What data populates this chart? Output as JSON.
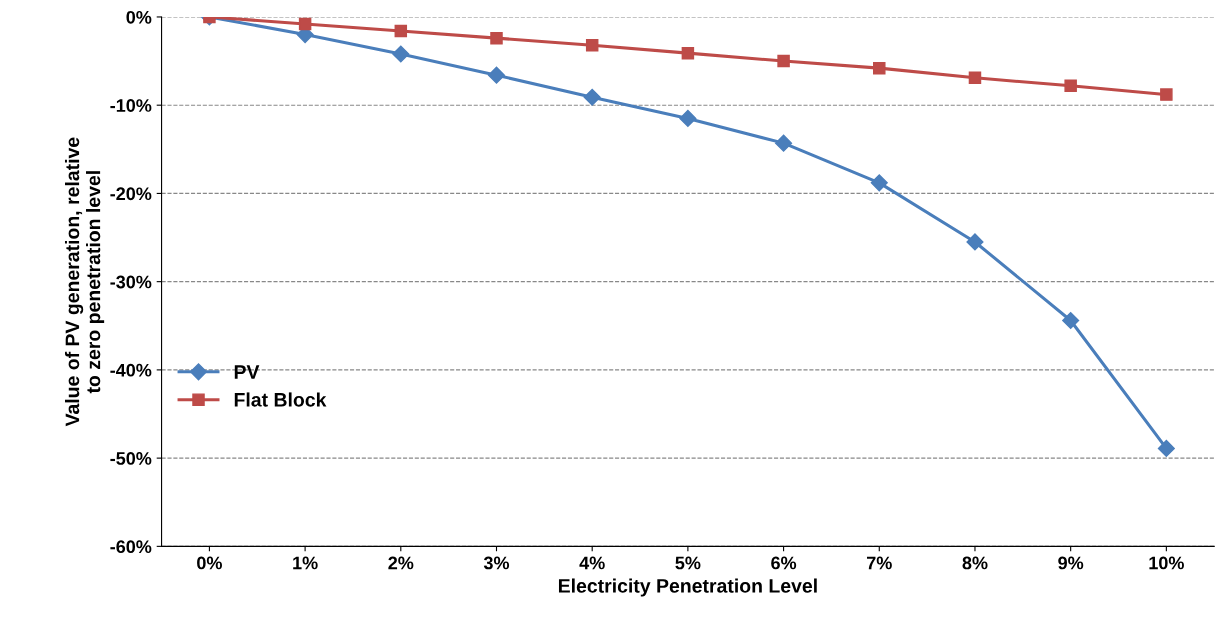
{
  "chart_data": {
    "type": "line",
    "xlabel": "Electricity Penetration Level",
    "ylabel": "Value of PV generation, relative\nto zero penetration level",
    "categories": [
      "0%",
      "1%",
      "2%",
      "3%",
      "4%",
      "5%",
      "6%",
      "7%",
      "8%",
      "9%",
      "10%"
    ],
    "series": [
      {
        "name": "PV",
        "color": "#4a7ebb",
        "marker": "diamond",
        "values": [
          0,
          -2.0,
          -4.2,
          -6.6,
          -9.1,
          -11.5,
          -14.3,
          -18.8,
          -25.5,
          -34.4,
          -48.9
        ]
      },
      {
        "name": "Flat Block",
        "color": "#be4b48",
        "marker": "square",
        "values": [
          0,
          -0.8,
          -1.6,
          -2.4,
          -3.2,
          -4.1,
          -5.0,
          -5.8,
          -6.9,
          -7.8,
          -8.8
        ]
      }
    ],
    "ylim": [
      -60,
      0
    ],
    "yticks": [
      {
        "value": -60,
        "label": "-60%"
      },
      {
        "value": -50,
        "label": "-50%"
      },
      {
        "value": -40,
        "label": "-40%"
      },
      {
        "value": -30,
        "label": "-30%"
      },
      {
        "value": -20,
        "label": "-20%"
      },
      {
        "value": -10,
        "label": "-10%"
      },
      {
        "value": 0,
        "label": "0%"
      }
    ],
    "grid": "y",
    "legend": "left",
    "line_style": "solid"
  }
}
